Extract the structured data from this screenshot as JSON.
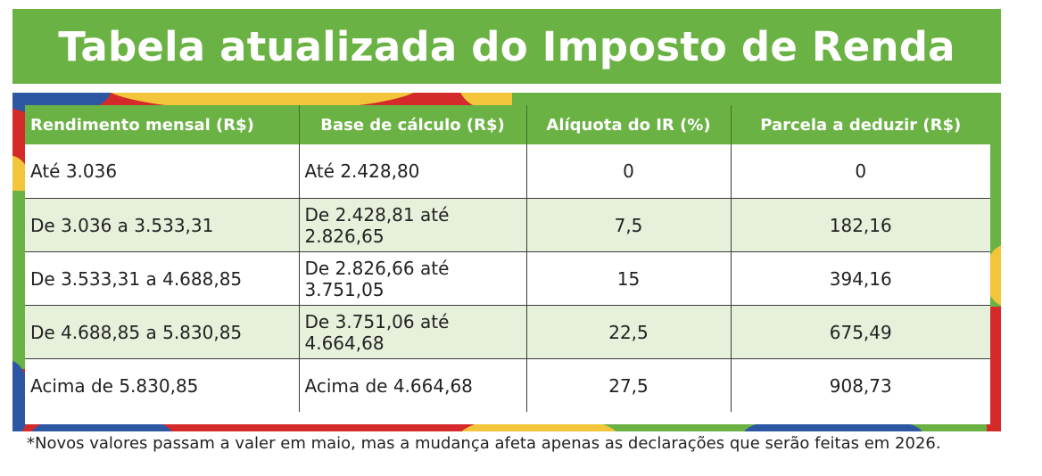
{
  "title": "Tabela atualizada do Imposto de Renda",
  "table": {
    "headers": [
      "Rendimento mensal (R$)",
      "Base de cálculo (R$)",
      "Alíquota do IR (%)",
      "Parcela a deduzir (R$)"
    ],
    "rows": [
      {
        "rendimento": "Até 3.036",
        "base": "Até 2.428,80",
        "aliquota": "0",
        "parcela": "0"
      },
      {
        "rendimento": "De 3.036 a 3.533,31",
        "base": "De 2.428,81 até 2.826,65",
        "aliquota": "7,5",
        "parcela": "182,16"
      },
      {
        "rendimento": "De 3.533,31 a 4.688,85",
        "base": "De 2.826,66 até 3.751,05",
        "aliquota": "15",
        "parcela": "394,16"
      },
      {
        "rendimento": "De 4.688,85 a 5.830,85",
        "base": "De 3.751,06 até 4.664,68",
        "aliquota": "22,5",
        "parcela": "675,49"
      },
      {
        "rendimento": "Acima de 5.830,85",
        "base": "Acima de 4.664,68",
        "aliquota": "27,5",
        "parcela": "908,73"
      }
    ]
  },
  "footnote": "*Novos valores passam a valer em maio, mas a mudança afeta apenas as declarações que serão feitas em 2026.",
  "colors": {
    "green": "#6bb244",
    "light_green": "#e6f0da",
    "red": "#d42a2a",
    "yellow": "#f3c53a",
    "blue": "#2d56a3"
  }
}
